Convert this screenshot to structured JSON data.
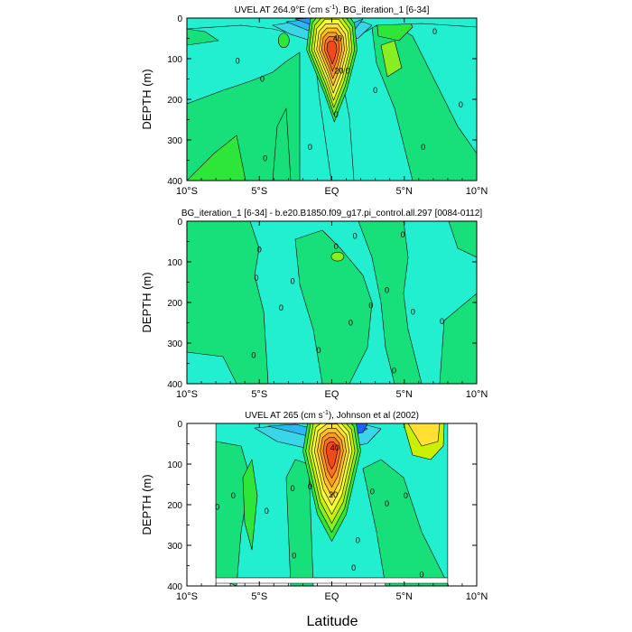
{
  "figure": {
    "xlabel": "Latitude"
  },
  "chart_data": [
    {
      "type": "heatmap",
      "title": "UVEL AT 264.9°E (cm s⁻¹), BG_iteration_1 [6-34]",
      "title_main": "UVEL AT 264.9°E (cm s",
      "title_sup": "-1",
      "title_tail": "), BG_iteration_1 [6-34]",
      "xlabel": "",
      "ylabel": "DEPTH (m)",
      "xlim": [
        -10,
        10
      ],
      "ylim": [
        400,
        0
      ],
      "xticks": [
        "10°S",
        "5°S",
        "EQ",
        "5°N",
        "10°N"
      ],
      "yticks": [
        "0",
        "100",
        "200",
        "300",
        "400"
      ],
      "contour_labels": [
        {
          "text": "0",
          "lat": -6.5,
          "depth": 105
        },
        {
          "text": "0",
          "lat": -4.8,
          "depth": 150
        },
        {
          "text": "0",
          "lat": -4.6,
          "depth": 345
        },
        {
          "text": "0",
          "lat": -1.5,
          "depth": 318
        },
        {
          "text": "0",
          "lat": 0.3,
          "depth": 238
        },
        {
          "text": "0",
          "lat": 1.1,
          "depth": 130
        },
        {
          "text": "0",
          "lat": 3.0,
          "depth": 178
        },
        {
          "text": "0",
          "lat": 6.3,
          "depth": 318
        },
        {
          "text": "0",
          "lat": 7.1,
          "depth": 33
        },
        {
          "text": "0",
          "lat": 8.9,
          "depth": 213
        },
        {
          "text": "40",
          "lat": 0.4,
          "depth": 50
        },
        {
          "text": "20",
          "lat": 0.5,
          "depth": 130
        }
      ],
      "features": [
        {
          "kind": "westward-jet",
          "lat": [
            -3.5,
            2.5
          ],
          "depth": [
            0,
            40
          ],
          "value": -30
        },
        {
          "kind": "eastward-core",
          "lat": [
            -1.2,
            1.2
          ],
          "depth": [
            20,
            160
          ],
          "max": 60,
          "max_at": [
            0,
            75
          ]
        },
        {
          "kind": "eastward-patch",
          "lat": [
            4.2,
            6.2
          ],
          "depth": [
            15,
            120
          ],
          "value": 8
        }
      ]
    },
    {
      "type": "heatmap",
      "title": "BG_iteration_1 [6-34] - b.e20.B1850.f09_g17.pi_control.all.297 [0084-0112]",
      "xlabel": "",
      "ylabel": "DEPTH (m)",
      "xlim": [
        -10,
        10
      ],
      "ylim": [
        400,
        0
      ],
      "xticks": [
        "10°S",
        "5°S",
        "EQ",
        "5°N",
        "10°N"
      ],
      "yticks": [
        "0",
        "100",
        "200",
        "300",
        "400"
      ],
      "contour_labels": [
        {
          "text": "0",
          "lat": -5.0,
          "depth": 70
        },
        {
          "text": "0",
          "lat": -5.2,
          "depth": 140
        },
        {
          "text": "0",
          "lat": -2.7,
          "depth": 148
        },
        {
          "text": "0",
          "lat": -5.4,
          "depth": 330
        },
        {
          "text": "0",
          "lat": -3.5,
          "depth": 213
        },
        {
          "text": "0",
          "lat": -0.9,
          "depth": 318
        },
        {
          "text": "0",
          "lat": 0.3,
          "depth": 62
        },
        {
          "text": "0",
          "lat": 1.6,
          "depth": 37
        },
        {
          "text": "0",
          "lat": 1.3,
          "depth": 250
        },
        {
          "text": "0",
          "lat": 2.7,
          "depth": 208
        },
        {
          "text": "0",
          "lat": 3.8,
          "depth": 170
        },
        {
          "text": "0",
          "lat": 4.3,
          "depth": 368
        },
        {
          "text": "0",
          "lat": 4.9,
          "depth": 33
        },
        {
          "text": "0",
          "lat": 5.6,
          "depth": 223
        },
        {
          "text": "0",
          "lat": 7.6,
          "depth": 247
        }
      ],
      "features": [
        {
          "kind": "positive-anomaly",
          "lat": [
            -0.3,
            0.7
          ],
          "depth": [
            60,
            100
          ],
          "value": 3
        }
      ]
    },
    {
      "type": "heatmap",
      "title": "UVEL AT 265 (cm s⁻¹), Johnson et al (2002)",
      "title_main": "UVEL AT 265 (cm s",
      "title_sup": "-1",
      "title_tail": "), Johnson et al (2002)",
      "xlabel": "Latitude",
      "ylabel": "DEPTH (m)",
      "xlim": [
        -10,
        10
      ],
      "ylim": [
        400,
        0
      ],
      "data_lat_range": [
        -8,
        8
      ],
      "data_depth_range": [
        0,
        380
      ],
      "xticks": [
        "10°S",
        "5°S",
        "EQ",
        "5°N",
        "10°N"
      ],
      "yticks": [
        "0",
        "100",
        "200",
        "300",
        "400"
      ],
      "contour_labels": [
        {
          "text": "0",
          "lat": -7.9,
          "depth": 205
        },
        {
          "text": "0",
          "lat": -6.8,
          "depth": 178
        },
        {
          "text": "0",
          "lat": -4.5,
          "depth": 215
        },
        {
          "text": "0",
          "lat": -2.7,
          "depth": 160
        },
        {
          "text": "0",
          "lat": -1.5,
          "depth": 155
        },
        {
          "text": "0",
          "lat": -2.6,
          "depth": 325
        },
        {
          "text": "0",
          "lat": 1.8,
          "depth": 288
        },
        {
          "text": "0",
          "lat": 2.8,
          "depth": 168
        },
        {
          "text": "0",
          "lat": 3.8,
          "depth": 198
        },
        {
          "text": "0",
          "lat": 5.1,
          "depth": 178
        },
        {
          "text": "0",
          "lat": 6.2,
          "depth": 372
        },
        {
          "text": "0",
          "lat": 1.5,
          "depth": 355
        },
        {
          "text": "40",
          "lat": 0.2,
          "depth": 60
        },
        {
          "text": "20",
          "lat": 0.1,
          "depth": 175
        }
      ],
      "features": [
        {
          "kind": "westward-jet",
          "lat": [
            -5,
            4
          ],
          "depth": [
            0,
            45
          ],
          "value": -40
        },
        {
          "kind": "eastward-core",
          "lat": [
            -1.3,
            1.3
          ],
          "depth": [
            15,
            200
          ],
          "max": 60,
          "max_at": [
            0,
            65
          ]
        },
        {
          "kind": "eastward-patch",
          "lat": [
            4.8,
            7.5
          ],
          "depth": [
            0,
            60
          ],
          "value": 30
        }
      ]
    }
  ],
  "palette": {
    "w5": "#1a66ff",
    "w4": "#2a94f5",
    "w3": "#2ab8f0",
    "w2": "#3ad6e8",
    "w1": "#00e8ff",
    "z": "#22eed0",
    "e1": "#17e07a",
    "e2": "#2ee53a",
    "e3": "#88ee22",
    "e4": "#c8f000",
    "e5": "#f2ff33",
    "e6": "#ffe033",
    "e7": "#ffc022",
    "e8": "#ff9a1a",
    "e9": "#ff7020",
    "e10": "#ef4a1c"
  }
}
